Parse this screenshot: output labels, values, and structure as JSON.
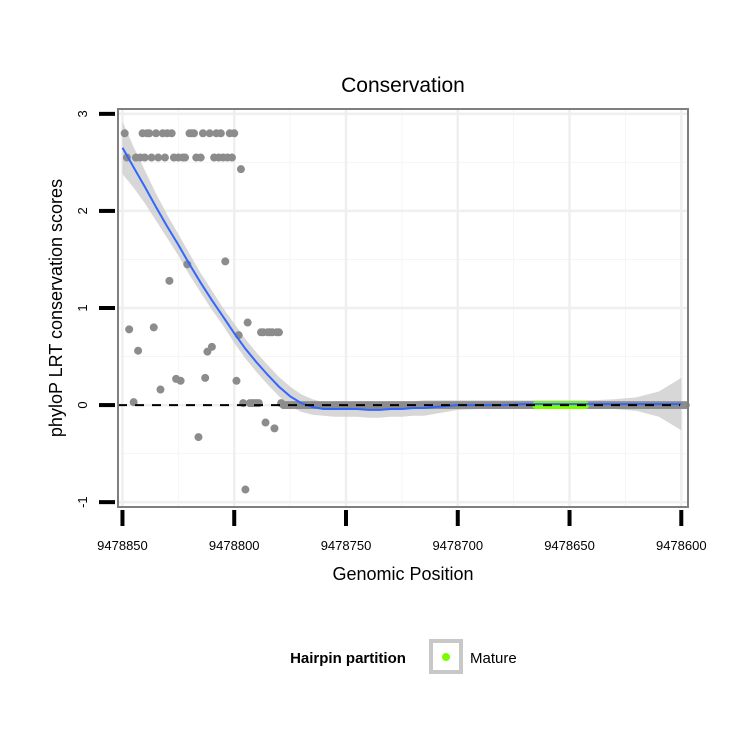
{
  "chart_data": {
    "type": "scatter",
    "title": "Conservation",
    "xlabel": "Genomic Position",
    "ylabel": "phyloP LRT conservation scores",
    "x_reversed": true,
    "xlim": [
      9478852,
      9478597
    ],
    "ylim": [
      -1.05,
      3.05
    ],
    "x_ticks": [
      9478850,
      9478800,
      9478750,
      9478700,
      9478650,
      9478600
    ],
    "x_tick_labels": [
      "9478850",
      "9478800",
      "9478750",
      "9478700",
      "9478650",
      "9478600"
    ],
    "y_ticks": [
      3,
      2,
      1,
      0,
      -1
    ],
    "y_tick_labels": [
      "3",
      "2",
      "1",
      "0",
      "-1"
    ],
    "grid": true,
    "reference_line": {
      "y": 0,
      "style": "dashed",
      "color": "#000000"
    },
    "points_color": "#8c8c8c",
    "points": [
      {
        "x": 9478849,
        "y": 2.8
      },
      {
        "x": 9478848,
        "y": 2.55
      },
      {
        "x": 9478847,
        "y": 0.78
      },
      {
        "x": 9478845,
        "y": 0.03
      },
      {
        "x": 9478844,
        "y": 2.55
      },
      {
        "x": 9478843,
        "y": 0.56
      },
      {
        "x": 9478842,
        "y": 2.55
      },
      {
        "x": 9478841,
        "y": 2.8
      },
      {
        "x": 9478840,
        "y": 2.55
      },
      {
        "x": 9478839,
        "y": 2.8
      },
      {
        "x": 9478838,
        "y": 2.8
      },
      {
        "x": 9478837,
        "y": 2.55
      },
      {
        "x": 9478836,
        "y": 0.8
      },
      {
        "x": 9478835,
        "y": 2.8
      },
      {
        "x": 9478834,
        "y": 2.55
      },
      {
        "x": 9478833,
        "y": 0.16
      },
      {
        "x": 9478832,
        "y": 2.8
      },
      {
        "x": 9478831,
        "y": 2.55
      },
      {
        "x": 9478830,
        "y": 2.8
      },
      {
        "x": 9478829,
        "y": 1.28
      },
      {
        "x": 9478828,
        "y": 2.8
      },
      {
        "x": 9478827,
        "y": 2.55
      },
      {
        "x": 9478826,
        "y": 0.27
      },
      {
        "x": 9478825,
        "y": 2.55
      },
      {
        "x": 9478824,
        "y": 0.25
      },
      {
        "x": 9478823,
        "y": 2.55
      },
      {
        "x": 9478822,
        "y": 2.55
      },
      {
        "x": 9478821,
        "y": 1.45
      },
      {
        "x": 9478820,
        "y": 2.8
      },
      {
        "x": 9478819,
        "y": 2.8
      },
      {
        "x": 9478818,
        "y": 2.8
      },
      {
        "x": 9478817,
        "y": 2.55
      },
      {
        "x": 9478816,
        "y": -0.33
      },
      {
        "x": 9478815,
        "y": 2.55
      },
      {
        "x": 9478814,
        "y": 2.8
      },
      {
        "x": 9478813,
        "y": 0.28
      },
      {
        "x": 9478812,
        "y": 0.55
      },
      {
        "x": 9478811,
        "y": 2.8
      },
      {
        "x": 9478810,
        "y": 0.6
      },
      {
        "x": 9478809,
        "y": 2.55
      },
      {
        "x": 9478808,
        "y": 2.8
      },
      {
        "x": 9478807,
        "y": 2.55
      },
      {
        "x": 9478806,
        "y": 2.8
      },
      {
        "x": 9478805,
        "y": 2.55
      },
      {
        "x": 9478804,
        "y": 1.48
      },
      {
        "x": 9478803,
        "y": 2.55
      },
      {
        "x": 9478802,
        "y": 2.8
      },
      {
        "x": 9478801,
        "y": 2.55
      },
      {
        "x": 9478800,
        "y": 2.8
      },
      {
        "x": 9478799,
        "y": 0.25
      },
      {
        "x": 9478798,
        "y": 0.72
      },
      {
        "x": 9478797,
        "y": 2.43
      },
      {
        "x": 9478796,
        "y": 0.02
      },
      {
        "x": 9478795,
        "y": -0.87
      },
      {
        "x": 9478794,
        "y": 0.85
      },
      {
        "x": 9478793,
        "y": 0.02
      },
      {
        "x": 9478792,
        "y": 0.02
      },
      {
        "x": 9478791,
        "y": 0.02
      },
      {
        "x": 9478790,
        "y": 0.02
      },
      {
        "x": 9478789,
        "y": 0.02
      },
      {
        "x": 9478788,
        "y": 0.75
      },
      {
        "x": 9478787,
        "y": 0.75
      },
      {
        "x": 9478786,
        "y": -0.18
      },
      {
        "x": 9478785,
        "y": 0.75
      },
      {
        "x": 9478784,
        "y": 0.75
      },
      {
        "x": 9478783,
        "y": 0.75
      },
      {
        "x": 9478782,
        "y": -0.24
      },
      {
        "x": 9478781,
        "y": 0.75
      },
      {
        "x": 9478780,
        "y": 0.75
      },
      {
        "x": 9478779,
        "y": 0.02
      }
    ],
    "dense_points_range": {
      "from": 9478778,
      "to": 9478598,
      "y": 0.0
    },
    "mature_points_range": {
      "from": 9478665,
      "to": 9478643,
      "y": 0.0,
      "color": "#7cfc00"
    },
    "smooth_color": "#3366ff",
    "smooth": {
      "x": [
        9478850,
        9478845,
        9478840,
        9478835,
        9478830,
        9478825,
        9478820,
        9478815,
        9478810,
        9478805,
        9478800,
        9478795,
        9478790,
        9478785,
        9478780,
        9478775,
        9478770,
        9478765,
        9478760,
        9478755,
        9478750,
        9478745,
        9478740,
        9478735,
        9478730,
        9478725,
        9478720,
        9478715,
        9478710,
        9478705,
        9478700,
        9478690,
        9478680,
        9478670,
        9478660,
        9478650,
        9478640,
        9478630,
        9478620,
        9478610,
        9478600
      ],
      "y": [
        2.65,
        2.45,
        2.25,
        2.04,
        1.84,
        1.65,
        1.45,
        1.26,
        1.08,
        0.91,
        0.74,
        0.58,
        0.44,
        0.31,
        0.19,
        0.09,
        0.02,
        -0.02,
        -0.04,
        -0.04,
        -0.04,
        -0.04,
        -0.05,
        -0.05,
        -0.04,
        -0.04,
        -0.03,
        -0.03,
        -0.02,
        -0.01,
        0.0,
        0.0,
        0.0,
        0.01,
        0.01,
        0.01,
        0.01,
        0.01,
        0.01,
        0.01,
        0.01
      ],
      "upper": [
        2.92,
        2.66,
        2.42,
        2.18,
        1.96,
        1.76,
        1.56,
        1.36,
        1.18,
        1.0,
        0.84,
        0.68,
        0.54,
        0.41,
        0.29,
        0.19,
        0.11,
        0.06,
        0.03,
        0.03,
        0.02,
        0.02,
        0.02,
        0.03,
        0.04,
        0.04,
        0.04,
        0.05,
        0.05,
        0.05,
        0.05,
        0.05,
        0.05,
        0.05,
        0.05,
        0.05,
        0.05,
        0.06,
        0.08,
        0.14,
        0.28
      ],
      "lower": [
        2.38,
        2.24,
        2.08,
        1.9,
        1.72,
        1.54,
        1.34,
        1.16,
        0.98,
        0.82,
        0.64,
        0.48,
        0.34,
        0.21,
        0.09,
        -0.01,
        -0.07,
        -0.1,
        -0.11,
        -0.12,
        -0.12,
        -0.12,
        -0.13,
        -0.13,
        -0.12,
        -0.12,
        -0.11,
        -0.11,
        -0.09,
        -0.07,
        -0.05,
        -0.04,
        -0.04,
        -0.03,
        -0.03,
        -0.03,
        -0.03,
        -0.04,
        -0.06,
        -0.12,
        -0.26
      ]
    },
    "legend": {
      "title": "Hairpin partition",
      "entries": [
        {
          "label": "Mature",
          "color": "#7cfc00"
        }
      ],
      "position": "bottom"
    }
  }
}
